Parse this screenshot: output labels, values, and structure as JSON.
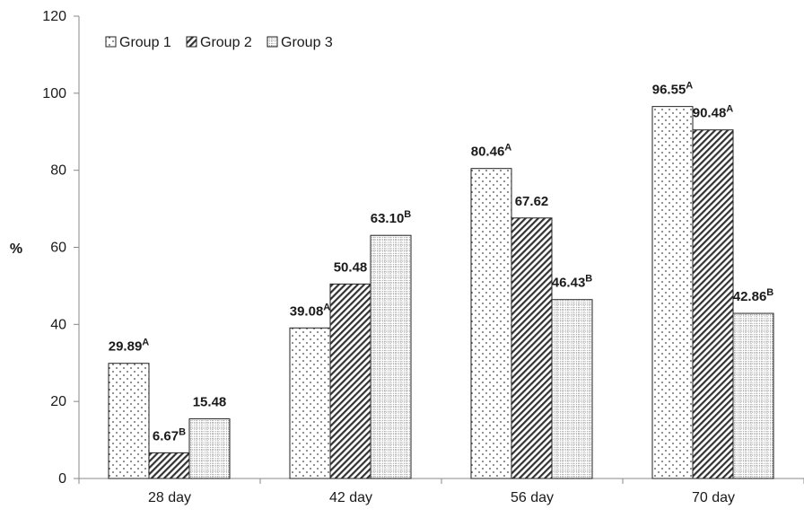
{
  "chart_data": {
    "type": "bar",
    "title": "",
    "xlabel": "",
    "ylabel": "%",
    "ylim": [
      0,
      120
    ],
    "yticks": [
      0,
      20,
      40,
      60,
      80,
      100,
      120
    ],
    "grid": false,
    "legend": {
      "position": "top-left"
    },
    "categories": [
      "28 day",
      "42 day",
      "56 day",
      "70 day"
    ],
    "series": [
      {
        "name": "Group 1",
        "pattern": "dots",
        "values": [
          29.89,
          39.08,
          80.46,
          96.55
        ],
        "labels": [
          "29.89",
          "39.08",
          "80.46",
          "96.55"
        ],
        "superscripts": [
          "A",
          "A",
          "A",
          "A"
        ]
      },
      {
        "name": "Group 2",
        "pattern": "diagonal",
        "values": [
          6.67,
          50.48,
          67.62,
          90.48
        ],
        "labels": [
          "6.67",
          "50.48",
          "67.62",
          "90.48"
        ],
        "superscripts": [
          "B",
          "",
          "",
          "A"
        ]
      },
      {
        "name": "Group 3",
        "pattern": "grid",
        "values": [
          15.48,
          63.1,
          46.43,
          42.86
        ],
        "labels": [
          "15.48",
          "63.10",
          "46.43",
          "42.86"
        ],
        "superscripts": [
          "",
          "B",
          "B",
          "B"
        ]
      }
    ]
  }
}
